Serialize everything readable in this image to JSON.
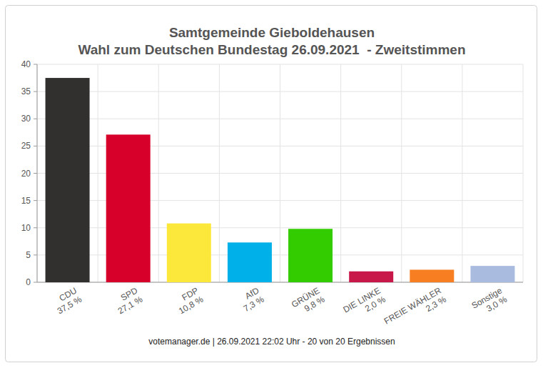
{
  "chart_data": {
    "type": "bar",
    "title": "Samtgemeinde Gieboldehausen",
    "subtitle": "Wahl zum Deutschen Bundestag 26.09.2021  - Zweitstimmen",
    "categories": [
      "CDU",
      "SPD",
      "FDP",
      "AfD",
      "GRÜNE",
      "DIE LINKE",
      "FREIE WÄHLER",
      "Sonstige"
    ],
    "values": [
      37.5,
      27.1,
      10.8,
      7.3,
      9.8,
      2.0,
      2.3,
      3.0
    ],
    "value_labels": [
      "37,5 %",
      "27,1 %",
      "10,8 %",
      "7,3 %",
      "9,8 %",
      "2,0 %",
      "2,3 %",
      "3,0 %"
    ],
    "colors": [
      "#32302e",
      "#d7002b",
      "#fce83a",
      "#00b0e8",
      "#33cc00",
      "#c8184a",
      "#f77f22",
      "#aabbe0"
    ],
    "ylim": [
      0,
      40
    ],
    "yticks": [
      0,
      5,
      10,
      15,
      20,
      25,
      30,
      35,
      40
    ],
    "grid": true,
    "data_labels": true,
    "source": "votemanager.de | 26.09.2021 22:02 Uhr - 20 von 20 Ergebnissen"
  }
}
